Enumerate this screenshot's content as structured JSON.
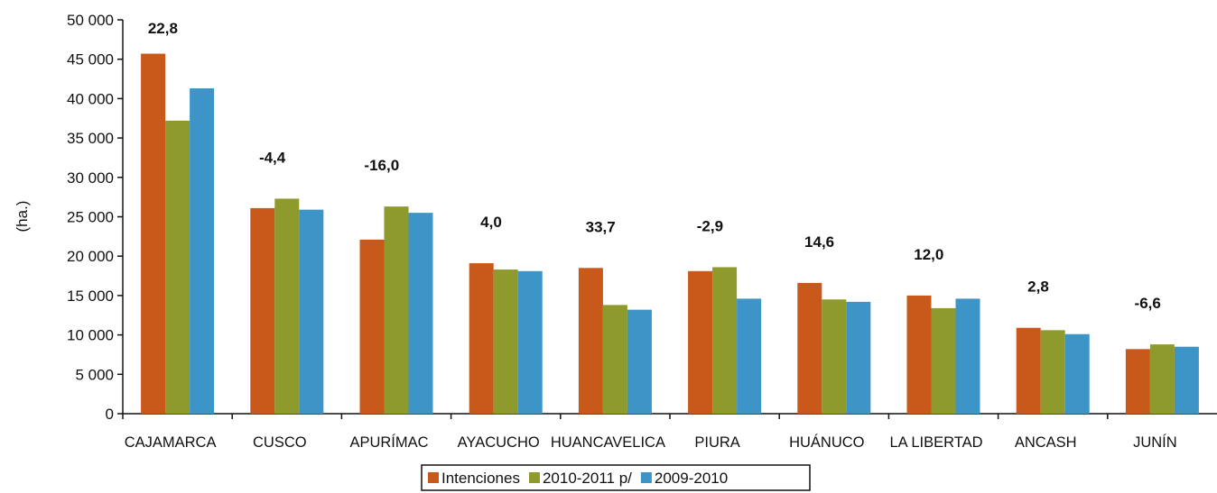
{
  "chart_data": {
    "type": "bar",
    "ylabel": "(ha.)",
    "ylim": [
      0,
      50000
    ],
    "yticks": [
      0,
      5000,
      10000,
      15000,
      20000,
      25000,
      30000,
      35000,
      40000,
      45000,
      50000
    ],
    "ytick_labels": [
      "0",
      "5 000",
      "10 000",
      "15 000",
      "20 000",
      "25 000",
      "30 000",
      "35 000",
      "40 000",
      "45 000",
      "50 000"
    ],
    "categories": [
      "CAJAMARCA",
      "CUSCO",
      "APURÍMAC",
      "AYACUCHO",
      "HUANCAVELICA",
      "PIURA",
      "HUÁNUCO",
      "LA LIBERTAD",
      "ANCASH",
      "JUNÍN"
    ],
    "series": [
      {
        "name": "Intenciones",
        "color": "#c8591b",
        "values": [
          45700,
          26100,
          22100,
          19100,
          18500,
          18100,
          16600,
          15000,
          10900,
          8200
        ]
      },
      {
        "name": "2010-2011 p/",
        "color": "#8f9a2c",
        "values": [
          37200,
          27300,
          26300,
          18300,
          13800,
          18600,
          14500,
          13400,
          10600,
          8800
        ]
      },
      {
        "name": "2009-2010",
        "color": "#3d94c6",
        "values": [
          41300,
          25900,
          25500,
          18100,
          13200,
          14600,
          14200,
          14600,
          10100,
          8500
        ]
      }
    ],
    "annotations": [
      "22,8",
      "-4,4",
      "-16,0",
      "4,0",
      "33,7",
      "-2,9",
      "14,6",
      "12,0",
      "2,8",
      "-6,6"
    ],
    "legend_position": "bottom-center",
    "grid": false
  }
}
